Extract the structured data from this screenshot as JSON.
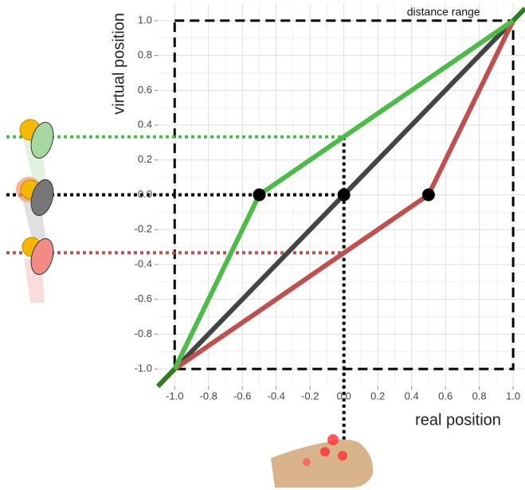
{
  "chart_data": {
    "type": "line",
    "x_label": "real position",
    "y_label": "virtual position",
    "xlim": [
      -1.1,
      1.07
    ],
    "ylim": [
      -1.1,
      1.1
    ],
    "xticks": [
      {
        "value": -1.0,
        "label": "-1.0"
      },
      {
        "value": -0.8,
        "label": "-0.8"
      },
      {
        "value": -0.6,
        "label": "-0.6"
      },
      {
        "value": -0.4,
        "label": "-0.4"
      },
      {
        "value": -0.2,
        "label": "-0.2"
      },
      {
        "value": 0,
        "label": "0.0"
      },
      {
        "value": 0.2,
        "label": "0.2"
      },
      {
        "value": 0.4,
        "label": "0.4"
      },
      {
        "value": 0.6,
        "label": "0.6"
      },
      {
        "value": 0.8,
        "label": "0.8"
      },
      {
        "value": 1.0,
        "label": "1.0"
      }
    ],
    "yticks": [
      {
        "value": -1.0,
        "label": "-1.0"
      },
      {
        "value": -0.8,
        "label": "-0.8"
      },
      {
        "value": -0.6,
        "label": "-0.6"
      },
      {
        "value": -0.4,
        "label": "-0.4"
      },
      {
        "value": -0.2,
        "label": "-0.2"
      },
      {
        "value": 0,
        "label": "0.0"
      },
      {
        "value": 0.2,
        "label": "0.2"
      },
      {
        "value": 0.4,
        "label": "0.4"
      },
      {
        "value": 0.6,
        "label": "0.6"
      },
      {
        "value": 0.8,
        "label": "0.8"
      },
      {
        "value": 1.0,
        "label": "1.0"
      }
    ],
    "grid": true,
    "minor_grid": true,
    "series": [
      {
        "color": "#444444",
        "x": [
          -1,
          0,
          1
        ],
        "values": [
          -1,
          0,
          1
        ]
      },
      {
        "color": "#c0504d",
        "x": [
          -1,
          0.5,
          1
        ],
        "values": [
          -1,
          0,
          1
        ]
      },
      {
        "color": "#4cbb47",
        "x": [
          -1,
          -0.5,
          1
        ],
        "values": [
          -1,
          0,
          1
        ]
      },
      {
        "color": "#2e7d1e",
        "x": [
          -1.1,
          -1
        ],
        "values": [
          -1.1,
          -1
        ]
      },
      {
        "color": "#2e7d1e",
        "x": [
          1,
          1.07
        ],
        "values": [
          1,
          1.07
        ]
      }
    ],
    "points": {
      "color": "#000000",
      "x": [
        -0.5,
        0,
        0.5
      ],
      "values": [
        0,
        0,
        0
      ]
    },
    "range_box": {
      "label": "distance range",
      "x": [
        -1,
        1
      ],
      "y": [
        -1,
        1
      ]
    },
    "guides": [
      {
        "y": 0.333,
        "color": "#4cbb47"
      },
      {
        "y": 0,
        "color": "#000000"
      },
      {
        "y": -0.333,
        "color": "#c0504d"
      }
    ],
    "vertical_guide": {
      "x": 0,
      "y_from": 0.333,
      "color": "#000000"
    }
  }
}
